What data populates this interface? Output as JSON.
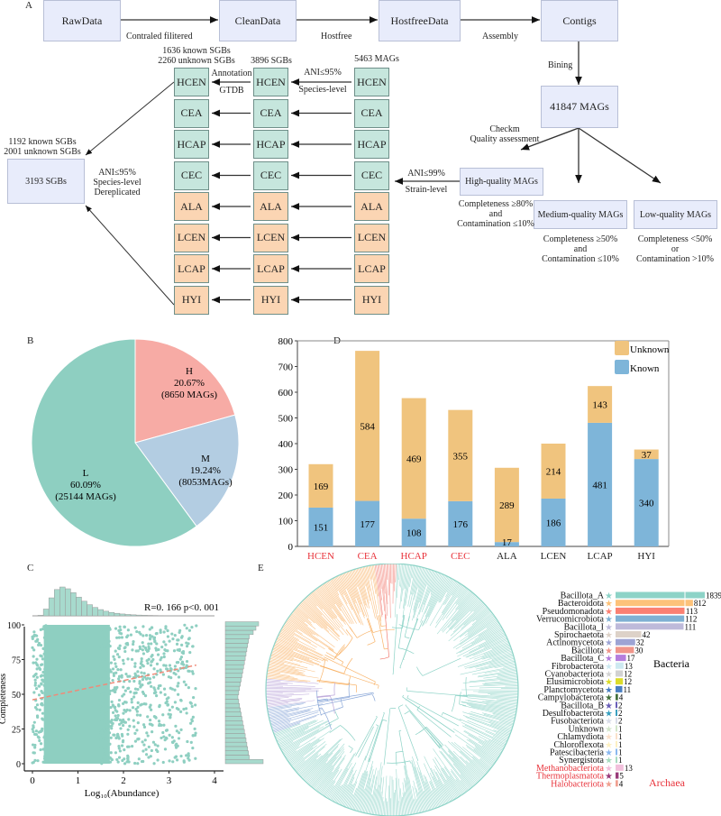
{
  "panel_labels": {
    "a": "A",
    "b": "B",
    "c": "C",
    "d": "D",
    "e": "E"
  },
  "panel_a": {
    "pipeline": [
      "RawData",
      "CleanData",
      "HostfreeData",
      "Contigs"
    ],
    "steps": [
      "Contraled filitered",
      "Hostfree",
      "Assembly",
      "Bining"
    ],
    "mags_total": "41847 MAGs",
    "checkm": [
      "Checkm",
      "Quality assessment"
    ],
    "high_quality": "High-quality MAGs",
    "medium_quality": "Medium-quality MAGs",
    "low_quality": "Low-quality MAGs",
    "hq_criteria": [
      "Completeness ≥80%",
      "and",
      "Contamination ≤10%"
    ],
    "mq_criteria": [
      "Completeness ≥50%",
      "and",
      "Contamination ≤10%"
    ],
    "lq_criteria": [
      "Completeness <50%",
      "or",
      "Contamination >10%"
    ],
    "strain_step": [
      "ANI≤99%",
      "Strain-level"
    ],
    "species_step": [
      "ANI≤95%",
      "Species-level"
    ],
    "annotation_step": [
      "Annotation",
      "GTDB"
    ],
    "mags_col": "5463 MAGs",
    "sgbs_col": "3896 SGBs",
    "annot_col": [
      "1636 known SGBs",
      "2260 unknown SGBs"
    ],
    "groups": [
      "HCEN",
      "CEA",
      "HCAP",
      "CEC",
      "ALA",
      "LCEN",
      "LCAP",
      "HYI"
    ],
    "group_colors": [
      "#c6e6dd",
      "#c6e6dd",
      "#c6e6dd",
      "#c6e6dd",
      "#fbd5b3",
      "#fbd5b3",
      "#fbd5b3",
      "#fbd5b3"
    ],
    "derep_step": [
      "ANI≤95%",
      "Species-level",
      "Dereplicated"
    ],
    "final_box": "3193 SGBs",
    "final_counts": [
      "1192 known SGBs",
      "2001 unknown SGBs"
    ]
  },
  "chart_data": [
    {
      "type": "pie",
      "slices": [
        {
          "label": "H",
          "percent": "20.67%",
          "count": "(8650 MAGs)",
          "value": 20.67,
          "color": "#f7aba5"
        },
        {
          "label": "M",
          "percent": "19.24%",
          "count": "(8053MAGs)",
          "value": 19.24,
          "color": "#b3cde2"
        },
        {
          "label": "L",
          "percent": "60.09%",
          "count": "(25144 MAGs)",
          "value": 60.09,
          "color": "#8ecfc1"
        }
      ]
    },
    {
      "type": "bar",
      "stacked": true,
      "categories": [
        "HCEN",
        "CEA",
        "HCAP",
        "CEC",
        "ALA",
        "LCEN",
        "LCAP",
        "HYI"
      ],
      "category_colors": [
        "#e8333b",
        "#e8333b",
        "#e8333b",
        "#e8333b",
        "#222222",
        "#222222",
        "#222222",
        "#222222"
      ],
      "series": [
        {
          "name": "Known",
          "values": [
            151,
            177,
            108,
            176,
            17,
            186,
            481,
            340
          ],
          "color": "#7eb5d9"
        },
        {
          "name": "Unknown",
          "values": [
            169,
            584,
            469,
            355,
            289,
            214,
            143,
            37
          ],
          "color": "#f0c47e"
        }
      ],
      "ylim": [
        0,
        800
      ],
      "yticks": [
        0,
        100,
        200,
        300,
        400,
        500,
        600,
        700,
        800
      ],
      "legend": "top-right"
    },
    {
      "type": "scatter",
      "xlabel": "Log₁₀(Abundance)",
      "ylabel": "Completeness",
      "xlim": [
        0,
        4
      ],
      "ylim": [
        0,
        100
      ],
      "xticks": [
        0,
        1,
        2,
        3,
        4
      ],
      "yticks": [
        0,
        25,
        50,
        75,
        100
      ],
      "annotation": "R=0. 166 p<0. 001",
      "annotation_r": "R=0. 166 ",
      "annotation_p": "p",
      "annotation_pv": "<0. 001",
      "regression": {
        "x": [
          0,
          3.6
        ],
        "y": [
          46,
          71
        ]
      },
      "point_color": "#8ecfc1",
      "line_color": "#f08a78",
      "marginal_histograms": [
        "top",
        "right"
      ]
    },
    {
      "type": "bar",
      "orientation": "horizontal",
      "categories": [
        "Bacillota_A",
        "Bacteroidota",
        "Pseudomonadota",
        "Verrucomicrobiota",
        "Bacillota_I",
        "Spirochaetota",
        "Actinomycetota",
        "Bacillota",
        "Bacillota_C",
        "Fibrobacterota",
        "Cyanobacteriota",
        "Elusimicrobiota",
        "Planctomycetota",
        "Campylobacterota",
        "Bacillota_B",
        "Desulfobacterota",
        "Fusobacteriota",
        "Unknown",
        "Chlamydiota",
        "Chloroflexota",
        "Patescibacteria",
        "Synergistota",
        "Methanobacteriota",
        "Thermoplasmatota",
        "Halobacteriota"
      ],
      "values": [
        1839,
        812,
        113,
        112,
        111,
        42,
        32,
        30,
        17,
        13,
        12,
        12,
        11,
        4,
        2,
        2,
        2,
        1,
        1,
        1,
        1,
        1,
        13,
        5,
        4
      ],
      "colors": [
        "#8dd3c7",
        "#fdc27a",
        "#fb8072",
        "#80b1d3",
        "#bebada",
        "#ddd2c8",
        "#9da4d4",
        "#f0958a",
        "#b57edc",
        "#cde9f1",
        "#d2d2d2",
        "#dcdc2a",
        "#4a7fc2",
        "#44703c",
        "#6a5fb8",
        "#3aa0c0",
        "#d8dce8",
        "#d2e6ca",
        "#fbe1ca",
        "#fdf0c2",
        "#8ab8ef",
        "#a8dcc0",
        "#f2c0dc",
        "#9a3a7a",
        "#f0a090"
      ],
      "domain": [
        "Bacteria",
        "Bacteria",
        "Bacteria",
        "Bacteria",
        "Bacteria",
        "Bacteria",
        "Bacteria",
        "Bacteria",
        "Bacteria",
        "Bacteria",
        "Bacteria",
        "Bacteria",
        "Bacteria",
        "Bacteria",
        "Bacteria",
        "Bacteria",
        "Bacteria",
        "Bacteria",
        "Bacteria",
        "Bacteria",
        "Bacteria",
        "Bacteria",
        "Archaea",
        "Archaea",
        "Archaea"
      ],
      "group_labels": {
        "bacteria": "Bacteria",
        "archaea": "Archaea"
      },
      "tree": "circular phylogenetic tree"
    }
  ]
}
